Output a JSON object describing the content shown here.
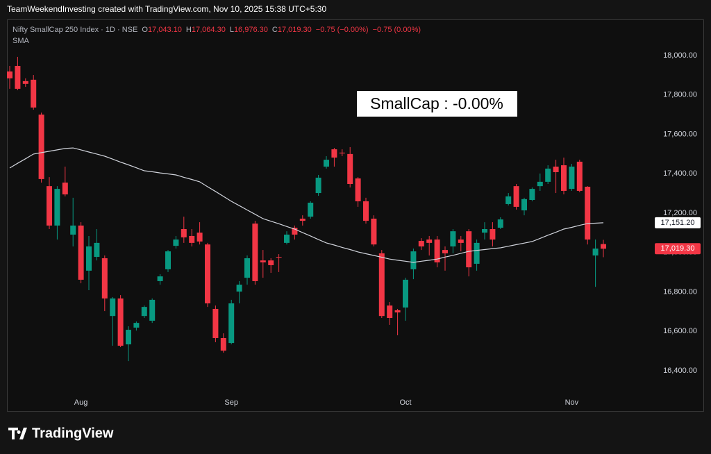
{
  "chart_data": {
    "type": "candlestick",
    "watermark": "TeamWeekendInvesting created with TradingView.com, Nov 10, 2025 15:38 UTC+5:30",
    "title": "Nifty SmallCap 250 Index · 1D · NSE",
    "legend": [
      {
        "key": "O",
        "text": "17,043.10"
      },
      {
        "key": "H",
        "text": "17,064.30"
      },
      {
        "key": "L",
        "text": "16,976.30"
      },
      {
        "key": "C",
        "text": "17,019.30"
      },
      {
        "key": "",
        "text": "−0.75 (−0.00%)"
      },
      {
        "key": "",
        "text": "−0.75 (0.00%)"
      }
    ],
    "indicator": "SMA",
    "annotation": "SmallCap : -0.00%",
    "logo": "TradingView",
    "up_color": "#089981",
    "down_color": "#f23645",
    "sma_color": "#d1d4dc",
    "open": [
      17919,
      17947,
      17870,
      17877,
      17700,
      17337,
      17137,
      17355,
      17091,
      17137,
      16908,
      16978,
      16971,
      16678,
      16767,
      16534,
      16619,
      16678,
      16654,
      16855,
      16915,
      17034,
      17119,
      17084,
      17101,
      17041,
      16714,
      16566,
      16541,
      16802,
      16872,
      17147,
      16960,
      16960,
      16978,
      17049,
      17126,
      17172,
      17182,
      17302,
      17436,
      17524,
      17507,
      17500,
      17376,
      17260,
      17172,
      16996,
      16731,
      16707,
      16721,
      16915,
      17059,
      17066,
      17066,
      17013,
      17031,
      17066,
      17108,
      16943,
      17101,
      17119,
      17126,
      17246,
      17337,
      17214,
      17267,
      17337,
      17359,
      17436,
      17443,
      17323,
      17461,
      17334,
      16985,
      17043.1
    ],
    "high": [
      17947,
      17993,
      17884,
      17901,
      17710,
      17383,
      17337,
      17436,
      17278,
      17154,
      17084,
      17119,
      16985,
      16774,
      16784,
      16626,
      16650,
      16731,
      16767,
      16890,
      17013,
      17084,
      17182,
      17119,
      17154,
      17049,
      16731,
      16590,
      16760,
      16855,
      16985,
      17161,
      17013,
      16971,
      16992,
      17108,
      17137,
      17189,
      17260,
      17394,
      17489,
      17531,
      17524,
      17535,
      17383,
      17278,
      17189,
      17013,
      16749,
      16714,
      16872,
      17020,
      17073,
      17084,
      17084,
      17031,
      17119,
      17084,
      17119,
      17066,
      17154,
      17154,
      17179,
      17302,
      17348,
      17278,
      17330,
      17401,
      17443,
      17471,
      17482,
      17450,
      17471,
      17337,
      17066,
      17064.3
    ],
    "low": [
      17831,
      17824,
      17841,
      17725,
      17355,
      17119,
      17066,
      17285,
      17031,
      16844,
      16809,
      16960,
      16703,
      16527,
      16520,
      16449,
      16604,
      16668,
      16643,
      16837,
      16901,
      17020,
      17049,
      17031,
      17041,
      16724,
      16545,
      16492,
      16534,
      16742,
      16837,
      16837,
      16872,
      16897,
      16901,
      17041,
      17066,
      17137,
      17172,
      17288,
      17426,
      17436,
      17489,
      17330,
      17232,
      17147,
      17031,
      16668,
      16633,
      16580,
      16654,
      16865,
      17013,
      16985,
      16925,
      16908,
      16996,
      17006,
      16879,
      16908,
      17066,
      17031,
      17119,
      17239,
      17218,
      17189,
      17260,
      17313,
      17348,
      17302,
      17295,
      17313,
      17306,
      17041,
      16826,
      16976.3
    ],
    "close": [
      17884,
      17831,
      17856,
      17736,
      17373,
      17137,
      17323,
      17295,
      17137,
      16862,
      17031,
      17049,
      16767,
      16767,
      16527,
      16608,
      16643,
      16724,
      16760,
      16879,
      17006,
      17066,
      17077,
      17049,
      17056,
      16742,
      16566,
      16502,
      16742,
      16837,
      16971,
      16855,
      16950,
      16936,
      16975,
      17091,
      17091,
      17161,
      17253,
      17380,
      17471,
      17482,
      17503,
      17348,
      17260,
      17161,
      17041,
      16678,
      16668,
      16696,
      16862,
      17006,
      17031,
      17049,
      16950,
      16996,
      17108,
      17049,
      16925,
      17049,
      17119,
      17066,
      17168,
      17285,
      17232,
      17271,
      17323,
      17359,
      17426,
      17408,
      17313,
      17436,
      17313,
      17066,
      17020,
      17019.3
    ],
    "sma": [
      17429,
      17453,
      17476,
      17500,
      17507,
      17514,
      17521,
      17528,
      17531,
      17521,
      17510,
      17500,
      17489,
      17474,
      17459,
      17445,
      17430,
      17415,
      17410,
      17404,
      17399,
      17394,
      17382,
      17371,
      17359,
      17334,
      17310,
      17285,
      17260,
      17238,
      17216,
      17194,
      17172,
      17159,
      17146,
      17132,
      17119,
      17101,
      17084,
      17066,
      17049,
      17038,
      17026,
      17015,
      17003,
      16994,
      16985,
      16976,
      16967,
      16961,
      16956,
      16950,
      16956,
      16961,
      16967,
      16977,
      16986,
      16996,
      17006,
      17011,
      17015,
      17020,
      17024,
      17032,
      17040,
      17048,
      17056,
      17072,
      17088,
      17103,
      17119,
      17128,
      17138,
      17147,
      17149,
      17151.2
    ],
    "xticks": [
      {
        "value": 9,
        "label": "Aug"
      },
      {
        "value": 28,
        "label": "Sep"
      },
      {
        "value": 50,
        "label": "Oct"
      },
      {
        "value": 71,
        "label": "Nov"
      }
    ],
    "ylim": [
      16196,
      18183
    ],
    "yticks": [
      {
        "value": 16400,
        "label": "16,400.00"
      },
      {
        "value": 16600,
        "label": "16,600.00"
      },
      {
        "value": 16800,
        "label": "16,800.00"
      },
      {
        "value": 17000,
        "label": "17,000.00"
      },
      {
        "value": 17200,
        "label": "17,200.00"
      },
      {
        "value": 17400,
        "label": "17,400.00"
      },
      {
        "value": 17600,
        "label": "17,600.00"
      },
      {
        "value": 17800,
        "label": "17,800.00"
      },
      {
        "value": 18000,
        "label": "18,000.00"
      }
    ],
    "price_labels": [
      {
        "value": 17151.2,
        "label": "17,151.20",
        "color": "#ffffff",
        "text_color": "#131722"
      },
      {
        "value": 17019.3,
        "label": "17,019.30",
        "color": "#f23645",
        "text_color": "#ffffff"
      }
    ],
    "grid": false
  }
}
